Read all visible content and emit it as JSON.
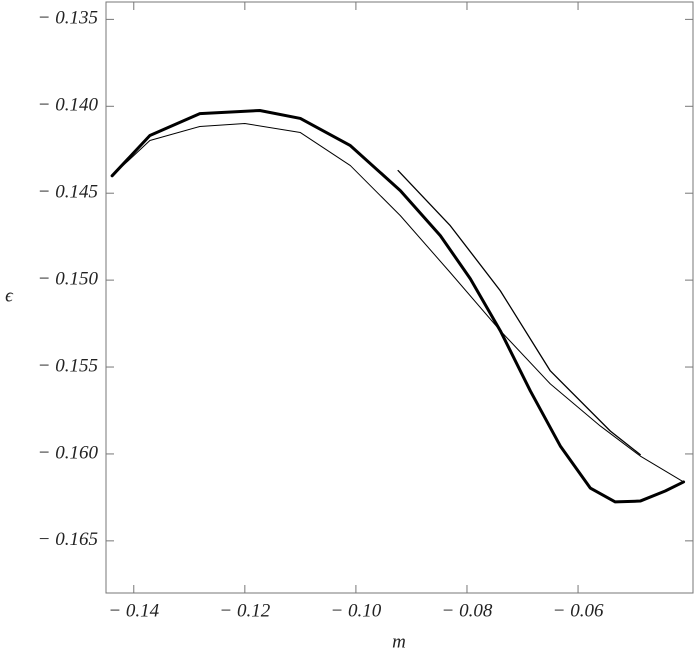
{
  "chart_data": {
    "type": "line",
    "x_label": "m",
    "y_label": "ϵ",
    "xlim": [
      -0.145,
      -0.0393
    ],
    "ylim": [
      -0.168,
      -0.134
    ],
    "xticks": [
      {
        "value": -0.14,
        "label": "− 0.14"
      },
      {
        "value": -0.12,
        "label": "− 0.12"
      },
      {
        "value": -0.1,
        "label": "− 0.10"
      },
      {
        "value": -0.08,
        "label": "− 0.08"
      },
      {
        "value": -0.06,
        "label": "− 0.06"
      }
    ],
    "yticks": [
      {
        "value": -0.135,
        "label": "− 0.135"
      },
      {
        "value": -0.14,
        "label": "− 0.140"
      },
      {
        "value": -0.145,
        "label": "− 0.145"
      },
      {
        "value": -0.15,
        "label": "− 0.150"
      },
      {
        "value": -0.155,
        "label": "− 0.155"
      },
      {
        "value": -0.16,
        "label": "− 0.160"
      },
      {
        "value": -0.165,
        "label": "− 0.165"
      }
    ],
    "series": [
      {
        "color": "#000000",
        "linewidth": 3,
        "x": [
          -0.1439,
          -0.1371,
          -0.1281,
          -0.1173,
          -0.11,
          -0.101,
          -0.092,
          -0.0848,
          -0.0794,
          -0.074,
          -0.0686,
          -0.0632,
          -0.0578,
          -0.0533,
          -0.0488,
          -0.0443,
          -0.041
        ],
        "values": [
          -0.144,
          -0.14168,
          -0.14042,
          -0.14024,
          -0.1407,
          -0.14226,
          -0.14485,
          -0.14744,
          -0.14992,
          -0.15291,
          -0.15637,
          -0.15954,
          -0.16196,
          -0.16276,
          -0.16271,
          -0.16213,
          -0.16161
        ]
      },
      {
        "color": "#000000",
        "linewidth": 1,
        "x": [
          -0.1439,
          -0.1371,
          -0.1281,
          -0.12,
          -0.11,
          -0.101,
          -0.092,
          -0.083,
          -0.074,
          -0.065,
          -0.056,
          -0.0488,
          -0.041
        ],
        "values": [
          -0.144,
          -0.14197,
          -0.14116,
          -0.14099,
          -0.14151,
          -0.14341,
          -0.14629,
          -0.14957,
          -0.15291,
          -0.15597,
          -0.15839,
          -0.16012,
          -0.16161
        ]
      },
      {
        "color": "#000000",
        "linewidth": 1.3,
        "x": [
          -0.0924,
          -0.083,
          -0.074,
          -0.065,
          -0.0542,
          -0.0488
        ],
        "values": [
          -0.1437,
          -0.14687,
          -0.15061,
          -0.15522,
          -0.15868,
          -0.16004
        ]
      }
    ]
  }
}
